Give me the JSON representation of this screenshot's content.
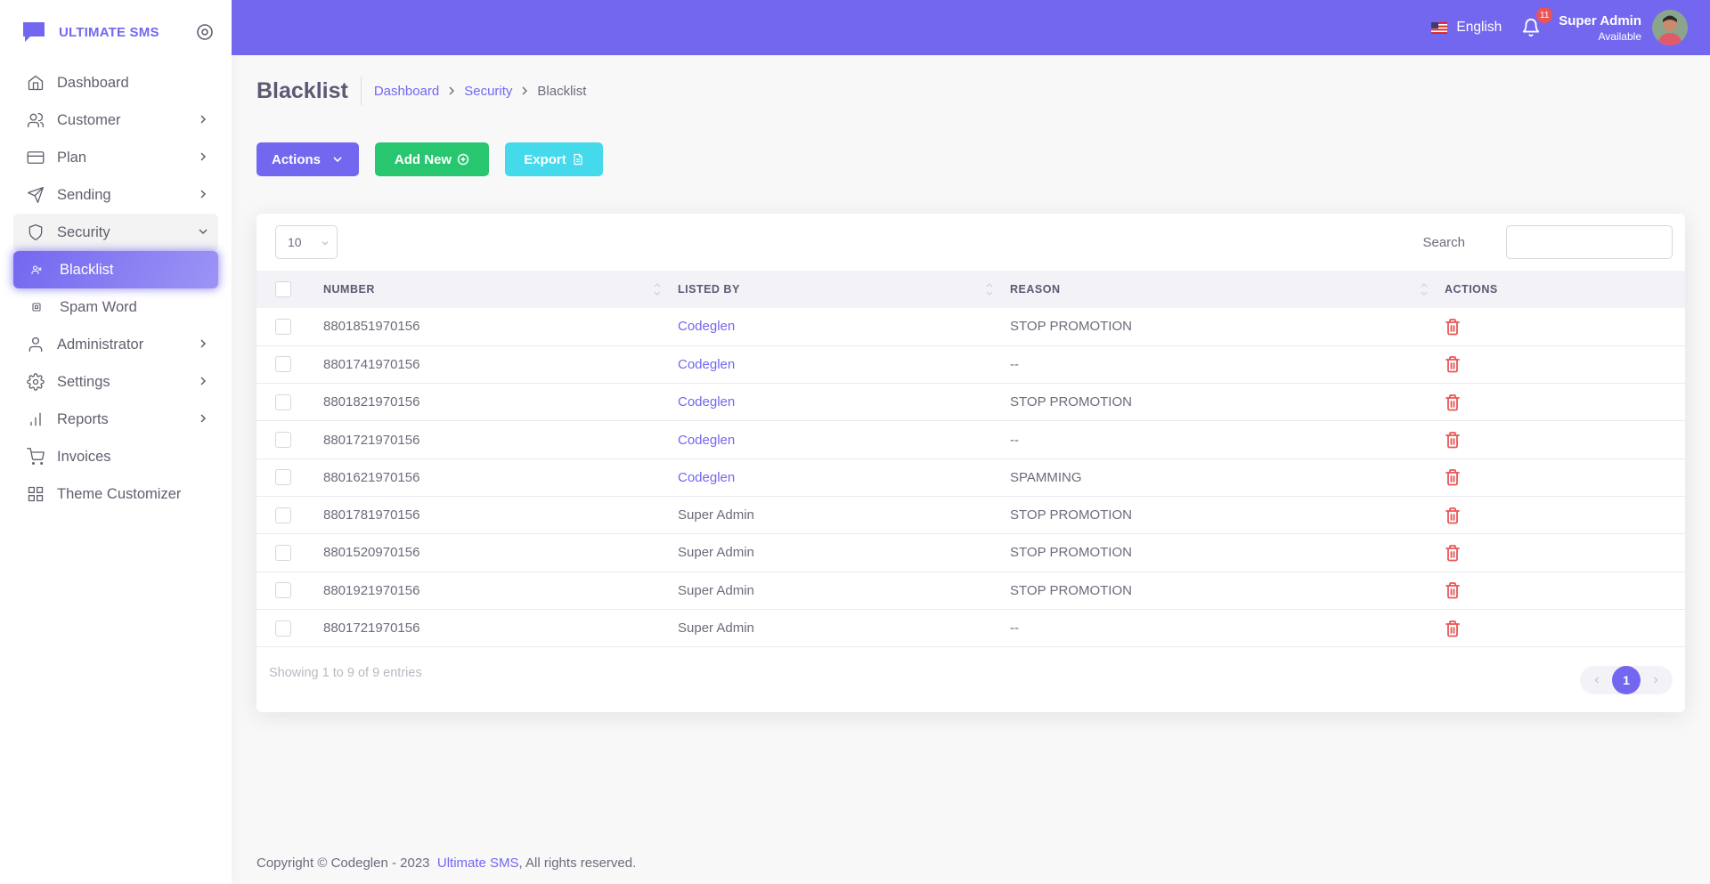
{
  "brand": {
    "name": "ULTIMATE SMS"
  },
  "sidebar": {
    "items": [
      {
        "label": "Dashboard",
        "icon": "home-icon",
        "has_chevron": false
      },
      {
        "label": "Customer",
        "icon": "users-icon",
        "has_chevron": true
      },
      {
        "label": "Plan",
        "icon": "credit-card-icon",
        "has_chevron": true
      },
      {
        "label": "Sending",
        "icon": "send-icon",
        "has_chevron": true
      },
      {
        "label": "Security",
        "icon": "shield-icon",
        "has_chevron": true,
        "open": true
      },
      {
        "label": "Blacklist",
        "icon": "user-x-icon",
        "sub": true,
        "active": true
      },
      {
        "label": "Spam Word",
        "icon": "square-icon",
        "sub": true
      },
      {
        "label": "Administrator",
        "icon": "user-icon",
        "has_chevron": true
      },
      {
        "label": "Settings",
        "icon": "gear-icon",
        "has_chevron": true
      },
      {
        "label": "Reports",
        "icon": "bar-chart-icon",
        "has_chevron": true
      },
      {
        "label": "Invoices",
        "icon": "shopping-cart-icon",
        "has_chevron": false
      },
      {
        "label": "Theme Customizer",
        "icon": "grid-icon",
        "has_chevron": false
      }
    ]
  },
  "navbar": {
    "language": "English",
    "notification_count": "11",
    "user_name": "Super Admin",
    "user_status": "Available"
  },
  "header": {
    "title": "Blacklist",
    "breadcrumb": [
      "Dashboard",
      "Security",
      "Blacklist"
    ]
  },
  "toolbar": {
    "actions_label": "Actions",
    "add_label": "Add New",
    "export_label": "Export"
  },
  "table": {
    "page_length": "10",
    "search_label": "Search",
    "columns": [
      "NUMBER",
      "LISTED BY",
      "REASON",
      "ACTIONS"
    ],
    "rows": [
      {
        "number": "8801851970156",
        "listed_by": "Codeglen",
        "reason": "STOP PROMOTION",
        "link": true
      },
      {
        "number": "8801741970156",
        "listed_by": "Codeglen",
        "reason": "--",
        "link": true
      },
      {
        "number": "8801821970156",
        "listed_by": "Codeglen",
        "reason": "STOP PROMOTION",
        "link": true
      },
      {
        "number": "8801721970156",
        "listed_by": "Codeglen",
        "reason": "--",
        "link": true
      },
      {
        "number": "8801621970156",
        "listed_by": "Codeglen",
        "reason": "SPAMMING",
        "link": true
      },
      {
        "number": "8801781970156",
        "listed_by": "Super Admin",
        "reason": "STOP PROMOTION",
        "link": false
      },
      {
        "number": "8801520970156",
        "listed_by": "Super Admin",
        "reason": "STOP PROMOTION",
        "link": false
      },
      {
        "number": "8801921970156",
        "listed_by": "Super Admin",
        "reason": "STOP PROMOTION",
        "link": false
      },
      {
        "number": "8801721970156",
        "listed_by": "Super Admin",
        "reason": "--",
        "link": false
      }
    ],
    "info": "Showing 1 to 9 of 9 entries",
    "current_page": "1"
  },
  "footer": {
    "prefix": "Copyright © Codeglen - 2023",
    "link": "Ultimate SMS",
    "suffix": ", All rights reserved."
  },
  "colors": {
    "primary": "#7367f0",
    "success": "#28c76f",
    "info": "#00cfe8",
    "danger": "#ea5455"
  }
}
